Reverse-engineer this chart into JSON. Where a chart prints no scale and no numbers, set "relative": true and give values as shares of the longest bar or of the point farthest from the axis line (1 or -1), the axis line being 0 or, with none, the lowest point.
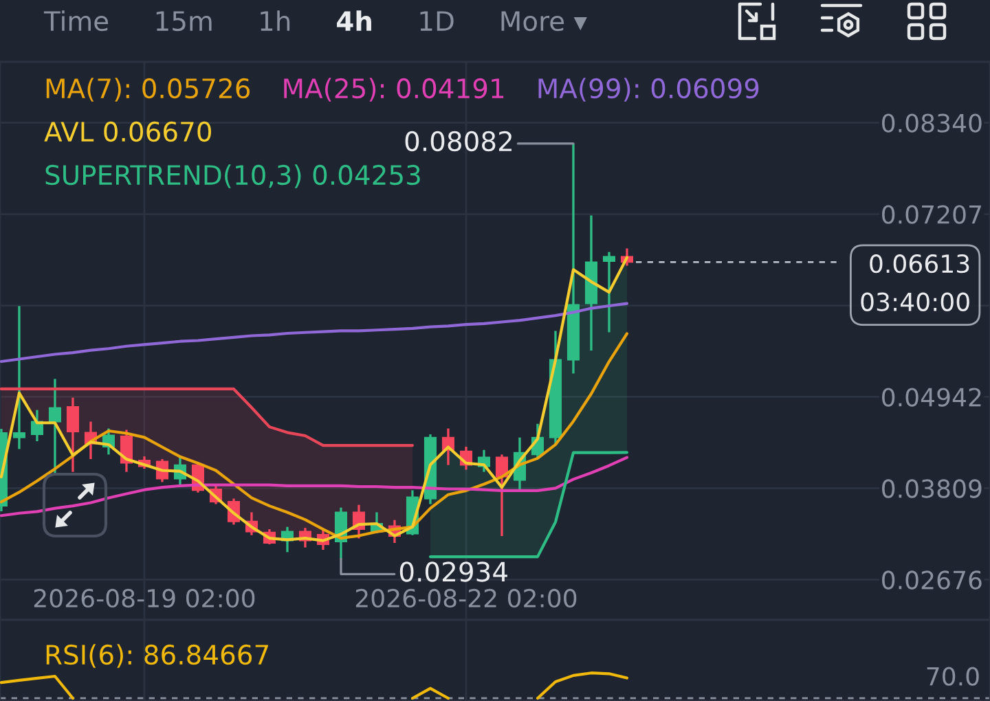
{
  "chart_data": [
    {
      "type": "candlestick",
      "x": [
        "2026-08-17T18:00",
        "2026-08-17T22:00",
        "2026-08-18T02:00",
        "2026-08-18T06:00",
        "2026-08-18T10:00",
        "2026-08-18T14:00",
        "2026-08-18T18:00",
        "2026-08-18T22:00",
        "2026-08-19T02:00",
        "2026-08-19T06:00",
        "2026-08-19T10:00",
        "2026-08-19T14:00",
        "2026-08-19T18:00",
        "2026-08-19T22:00",
        "2026-08-20T02:00",
        "2026-08-20T06:00",
        "2026-08-20T10:00",
        "2026-08-20T14:00",
        "2026-08-20T18:00",
        "2026-08-20T22:00",
        "2026-08-21T02:00",
        "2026-08-21T06:00",
        "2026-08-21T10:00",
        "2026-08-21T14:00",
        "2026-08-21T18:00",
        "2026-08-21T22:00",
        "2026-08-22T02:00",
        "2026-08-22T06:00",
        "2026-08-22T10:00",
        "2026-08-22T14:00",
        "2026-08-22T18:00",
        "2026-08-22T22:00",
        "2026-08-23T02:00",
        "2026-08-23T06:00",
        "2026-08-23T10:00",
        "2026-08-23T14:00"
      ],
      "ohlc": [
        [
          0.03591,
          0.04545,
          0.03523,
          0.04494
        ],
        [
          0.04438,
          0.06067,
          0.04295,
          0.04494
        ],
        [
          0.04477,
          0.04779,
          0.04392,
          0.04635
        ],
        [
          0.04635,
          0.05164,
          0.03971,
          0.04806
        ],
        [
          0.04818,
          0.04932,
          0.04012,
          0.04511
        ],
        [
          0.04499,
          0.04635,
          0.0417,
          0.04363
        ],
        [
          0.04324,
          0.0455,
          0.04227,
          0.04465
        ],
        [
          0.04455,
          0.04533,
          0.04012,
          0.04124
        ],
        [
          0.04153,
          0.04204,
          0.04051,
          0.0408
        ],
        [
          0.04141,
          0.0417,
          0.03886,
          0.03927
        ],
        [
          0.03927,
          0.04192,
          0.03852,
          0.04097
        ],
        [
          0.04097,
          0.04124,
          0.03756,
          0.03784
        ],
        [
          0.03795,
          0.03841,
          0.03613,
          0.03642
        ],
        [
          0.03642,
          0.03681,
          0.03358,
          0.03398
        ],
        [
          0.03398,
          0.03511,
          0.03228,
          0.03272
        ],
        [
          0.03262,
          0.03301,
          0.03114,
          0.03131
        ],
        [
          0.0316,
          0.0333,
          0.03017,
          0.03272
        ],
        [
          0.03272,
          0.03318,
          0.03075,
          0.0316
        ],
        [
          0.03233,
          0.03301,
          0.03046,
          0.03114
        ],
        [
          0.03148,
          0.03569,
          0.02934,
          0.03511
        ],
        [
          0.03511,
          0.03603,
          0.03187,
          0.03301
        ],
        [
          0.03272,
          0.03511,
          0.0325,
          0.03369
        ],
        [
          0.03341,
          0.03415,
          0.03131,
          0.03216
        ],
        [
          0.03245,
          0.03784,
          0.03228,
          0.03698
        ],
        [
          0.03681,
          0.04477,
          0.03613,
          0.04438
        ],
        [
          0.04438,
          0.0455,
          0.04097,
          0.04284
        ],
        [
          0.04267,
          0.04324,
          0.04039,
          0.04097
        ],
        [
          0.0408,
          0.04284,
          0.04012,
          0.04192
        ],
        [
          0.04192,
          0.04227,
          0.03216,
          0.03954
        ],
        [
          0.0391,
          0.04438,
          0.03784,
          0.0425
        ],
        [
          0.04227,
          0.04608,
          0.04182,
          0.04438
        ],
        [
          0.04438,
          0.0576,
          0.04353,
          0.05402
        ],
        [
          0.05402,
          0.08082,
          0.05232,
          0.06084
        ],
        [
          0.06101,
          0.07191,
          0.05516,
          0.06612
        ],
        [
          0.06624,
          0.06738,
          0.05743,
          0.0668
        ],
        [
          0.0668,
          0.06782,
          0.06568,
          0.06613
        ]
      ],
      "colors": [
        "#2ebd85",
        "#2ebd85",
        "#2ebd85",
        "#2ebd85",
        "#f6465d",
        "#f6465d",
        "#2ebd85",
        "#f6465d",
        "#f6465d",
        "#f6465d",
        "#2ebd85",
        "#f6465d",
        "#f6465d",
        "#f6465d",
        "#f6465d",
        "#f6465d",
        "#2ebd85",
        "#f6465d",
        "#f6465d",
        "#2ebd85",
        "#f6465d",
        "#2ebd85",
        "#f6465d",
        "#2ebd85",
        "#2ebd85",
        "#f6465d",
        "#f6465d",
        "#2ebd85",
        "#f6465d",
        "#2ebd85",
        "#2ebd85",
        "#2ebd85",
        "#2ebd85",
        "#2ebd85",
        "#2ebd85",
        "#f6465d"
      ],
      "series": [
        {
          "type": "line",
          "name": "MA(7): 0.05726",
          "color": "#e9a30d",
          "values": [
            0.0364,
            0.0376,
            0.039,
            0.0405,
            0.0421,
            0.0439,
            0.0452,
            0.0449,
            0.0444,
            0.0432,
            0.042,
            0.0412,
            0.0403,
            0.0386,
            0.0369,
            0.0359,
            0.0351,
            0.0342,
            0.033,
            0.0319,
            0.0322,
            0.0327,
            0.033,
            0.0333,
            0.0356,
            0.0373,
            0.0378,
            0.0386,
            0.0395,
            0.041,
            0.0418,
            0.0435,
            0.0464,
            0.0498,
            0.0538,
            0.05726
          ]
        },
        {
          "type": "line",
          "name": "MA(25): 0.04191",
          "color": "#e040b4",
          "values": [
            0.0347,
            0.035,
            0.0352,
            0.0356,
            0.0359,
            0.0363,
            0.0369,
            0.0374,
            0.0379,
            0.0382,
            0.0384,
            0.0385,
            0.0385,
            0.0385,
            0.0385,
            0.0385,
            0.0384,
            0.0384,
            0.0384,
            0.0384,
            0.0383,
            0.0383,
            0.0382,
            0.0382,
            0.0381,
            0.038,
            0.038,
            0.0379,
            0.0378,
            0.0378,
            0.0378,
            0.0381,
            0.0392,
            0.04,
            0.0409,
            0.04191
          ]
        },
        {
          "type": "line",
          "name": "MA(99): 0.06099",
          "color": "#9168d8",
          "values": [
            0.0538,
            0.0541,
            0.0544,
            0.0547,
            0.0549,
            0.0552,
            0.0554,
            0.0557,
            0.0559,
            0.0561,
            0.0563,
            0.0564,
            0.0566,
            0.0568,
            0.057,
            0.0571,
            0.0573,
            0.0574,
            0.0575,
            0.0576,
            0.0576,
            0.0577,
            0.0578,
            0.0579,
            0.0581,
            0.0582,
            0.0584,
            0.0585,
            0.0587,
            0.0589,
            0.0592,
            0.0595,
            0.0599,
            0.0604,
            0.0607,
            0.06099
          ]
        },
        {
          "type": "line",
          "name": "AVL 0.06670",
          "color": "#f5cd2f",
          "values": [
            0.0395,
            0.0499,
            0.0462,
            0.0462,
            0.0422,
            0.0438,
            0.0435,
            0.0417,
            0.041,
            0.0403,
            0.0402,
            0.039,
            0.037,
            0.035,
            0.0333,
            0.0319,
            0.0317,
            0.0319,
            0.0316,
            0.0324,
            0.0336,
            0.0337,
            0.0322,
            0.0333,
            0.041,
            0.0432,
            0.0412,
            0.041,
            0.0382,
            0.0415,
            0.0442,
            0.054,
            0.0652,
            0.0637,
            0.0624,
            0.0667
          ]
        },
        {
          "type": "line",
          "color": "#e8475a",
          "values": [
            0.0504,
            0.0504,
            0.0504,
            0.0504,
            0.0504,
            0.0504,
            0.0504,
            0.0504,
            0.0504,
            0.0504,
            0.0504,
            0.0504,
            0.0504,
            0.0504,
            0.0481,
            0.0457,
            0.045,
            0.0446,
            0.0434,
            0.0434,
            0.0434,
            0.0434,
            0.0434,
            0.0434,
            null,
            null,
            null,
            null,
            null,
            null,
            null,
            null,
            null,
            null,
            null,
            null
          ],
          "lower": [
            0.0395,
            0.0499,
            0.0462,
            0.0462,
            0.0422,
            0.0438,
            0.0435,
            0.0417,
            0.041,
            0.0403,
            0.0402,
            0.039,
            0.037,
            0.035,
            0.0333,
            0.0319,
            0.0317,
            0.0319,
            0.0316,
            0.0324,
            0.0336,
            0.0337,
            0.0322,
            0.0333,
            null,
            null,
            null,
            null,
            null,
            null,
            null,
            null,
            null,
            null,
            null,
            null
          ],
          "upper": [
            0.0504,
            0.0504,
            0.0504,
            0.0504,
            0.0504,
            0.0504,
            0.0504,
            0.0504,
            0.0504,
            0.0504,
            0.0504,
            0.0504,
            0.0504,
            0.0504,
            0.0481,
            0.0457,
            0.045,
            0.0446,
            0.0434,
            0.0434,
            0.0434,
            0.0434,
            0.0434,
            0.0434,
            null,
            null,
            null,
            null,
            null,
            null,
            null,
            null,
            null,
            null,
            null,
            null
          ]
        },
        {
          "type": "line",
          "name": "SUPERTREND(10,3) 0.04253",
          "color": "#2ebd85",
          "values": [
            null,
            null,
            null,
            null,
            null,
            null,
            null,
            null,
            null,
            null,
            null,
            null,
            null,
            null,
            null,
            null,
            null,
            null,
            null,
            null,
            null,
            null,
            null,
            null,
            0.0296,
            0.0296,
            0.0296,
            0.0296,
            0.0296,
            0.0296,
            0.0296,
            0.0339,
            0.0425,
            0.0425,
            0.0425,
            0.04253
          ],
          "lower": [
            null,
            null,
            null,
            null,
            null,
            null,
            null,
            null,
            null,
            null,
            null,
            null,
            null,
            null,
            null,
            null,
            null,
            null,
            null,
            null,
            null,
            null,
            null,
            null,
            0.0296,
            0.0296,
            0.0296,
            0.0296,
            0.0296,
            0.0296,
            0.0296,
            0.0339,
            0.0425,
            0.0425,
            0.0425,
            0.04253
          ],
          "upper": [
            null,
            null,
            null,
            null,
            null,
            null,
            null,
            null,
            null,
            null,
            null,
            null,
            null,
            null,
            null,
            null,
            null,
            null,
            null,
            null,
            null,
            null,
            null,
            null,
            0.041,
            0.0432,
            0.0412,
            0.041,
            0.0382,
            0.0415,
            0.0442,
            0.054,
            0.0652,
            0.0637,
            0.0624,
            0.0667
          ]
        }
      ],
      "xlim": [
        "2026-08-17T17:42",
        "2026-08-26T23:14"
      ],
      "xticks": [
        {
          "value": "2026-08-19T02:00",
          "label": "2026-08-19 02:00"
        },
        {
          "value": "2026-08-22T02:00",
          "label": "2026-08-22 02:00"
        }
      ],
      "ylim": [
        0.02177,
        0.09095
      ],
      "yticks": [
        0.02676,
        0.03809,
        0.04942,
        {
          "value": 0.06074,
          "label": null
        },
        0.07207,
        {
          "value": 0.0834,
          "label": "0.08340"
        }
      ],
      "grid": true,
      "legend": "top left",
      "ref_lines": [
        {
          "axis": "y",
          "value": 0.06613,
          "label": "0.06613\n03:40:00",
          "color": "#b7bdc6",
          "line_style": "dashed"
        }
      ],
      "annotations": [
        "Time",
        "15m",
        "1h",
        "4h",
        "1D",
        "More ▾",
        {
          "text": "0.08082",
          "x": "2026-08-23T02:00",
          "y": 0.08082
        },
        {
          "text": "0.02934",
          "x": "2026-08-20T22:00",
          "y": 0.02934
        }
      ]
    },
    {
      "type": "line",
      "relative": true,
      "x": [
        "2026-08-17T18:00",
        "2026-08-17T22:00",
        "2026-08-18T02:00",
        "2026-08-18T06:00",
        "2026-08-18T10:00",
        "2026-08-18T14:00",
        "2026-08-18T18:00",
        "2026-08-18T22:00",
        "2026-08-19T02:00",
        "2026-08-19T06:00",
        "2026-08-19T10:00",
        "2026-08-19T14:00",
        "2026-08-19T18:00",
        "2026-08-19T22:00",
        "2026-08-20T02:00",
        "2026-08-20T06:00",
        "2026-08-20T10:00",
        "2026-08-20T14:00",
        "2026-08-20T18:00",
        "2026-08-20T22:00",
        "2026-08-21T02:00",
        "2026-08-21T06:00",
        "2026-08-21T10:00",
        "2026-08-21T14:00",
        "2026-08-21T18:00",
        "2026-08-21T22:00",
        "2026-08-22T02:00",
        "2026-08-22T06:00",
        "2026-08-22T10:00",
        "2026-08-22T14:00",
        "2026-08-22T18:00",
        "2026-08-22T22:00",
        "2026-08-23T02:00",
        "2026-08-23T06:00",
        "2026-08-23T10:00",
        "2026-08-23T14:00"
      ],
      "series": [
        {
          "name": "RSI(6): 86.84667",
          "color": "#f0b90b",
          "values": [
            0.62,
            0.71,
            0.79,
            0.87,
            0,
            null,
            null,
            null,
            null,
            null,
            null,
            null,
            null,
            null,
            null,
            null,
            null,
            null,
            null,
            null,
            null,
            null,
            null,
            0,
            0.39,
            0,
            null,
            null,
            null,
            null,
            0,
            0.65,
            0.9,
            1,
            0.97,
            0.8
          ]
        }
      ],
      "xlim": [
        "2026-08-17T17:42",
        "2026-08-26T23:14"
      ],
      "xticks": [
        "2026-08-19T02:00",
        "2026-08-22T02:00"
      ],
      "tick_labels": false,
      "grid": "x",
      "legend": "top left",
      "ref_lines": [
        {
          "axis": "y",
          "value": 0,
          "color": "#8a919e",
          "line_style": "dashed"
        }
      ],
      "annotations": [
        {
          "text": "70.0",
          "y": 0
        }
      ]
    }
  ]
}
